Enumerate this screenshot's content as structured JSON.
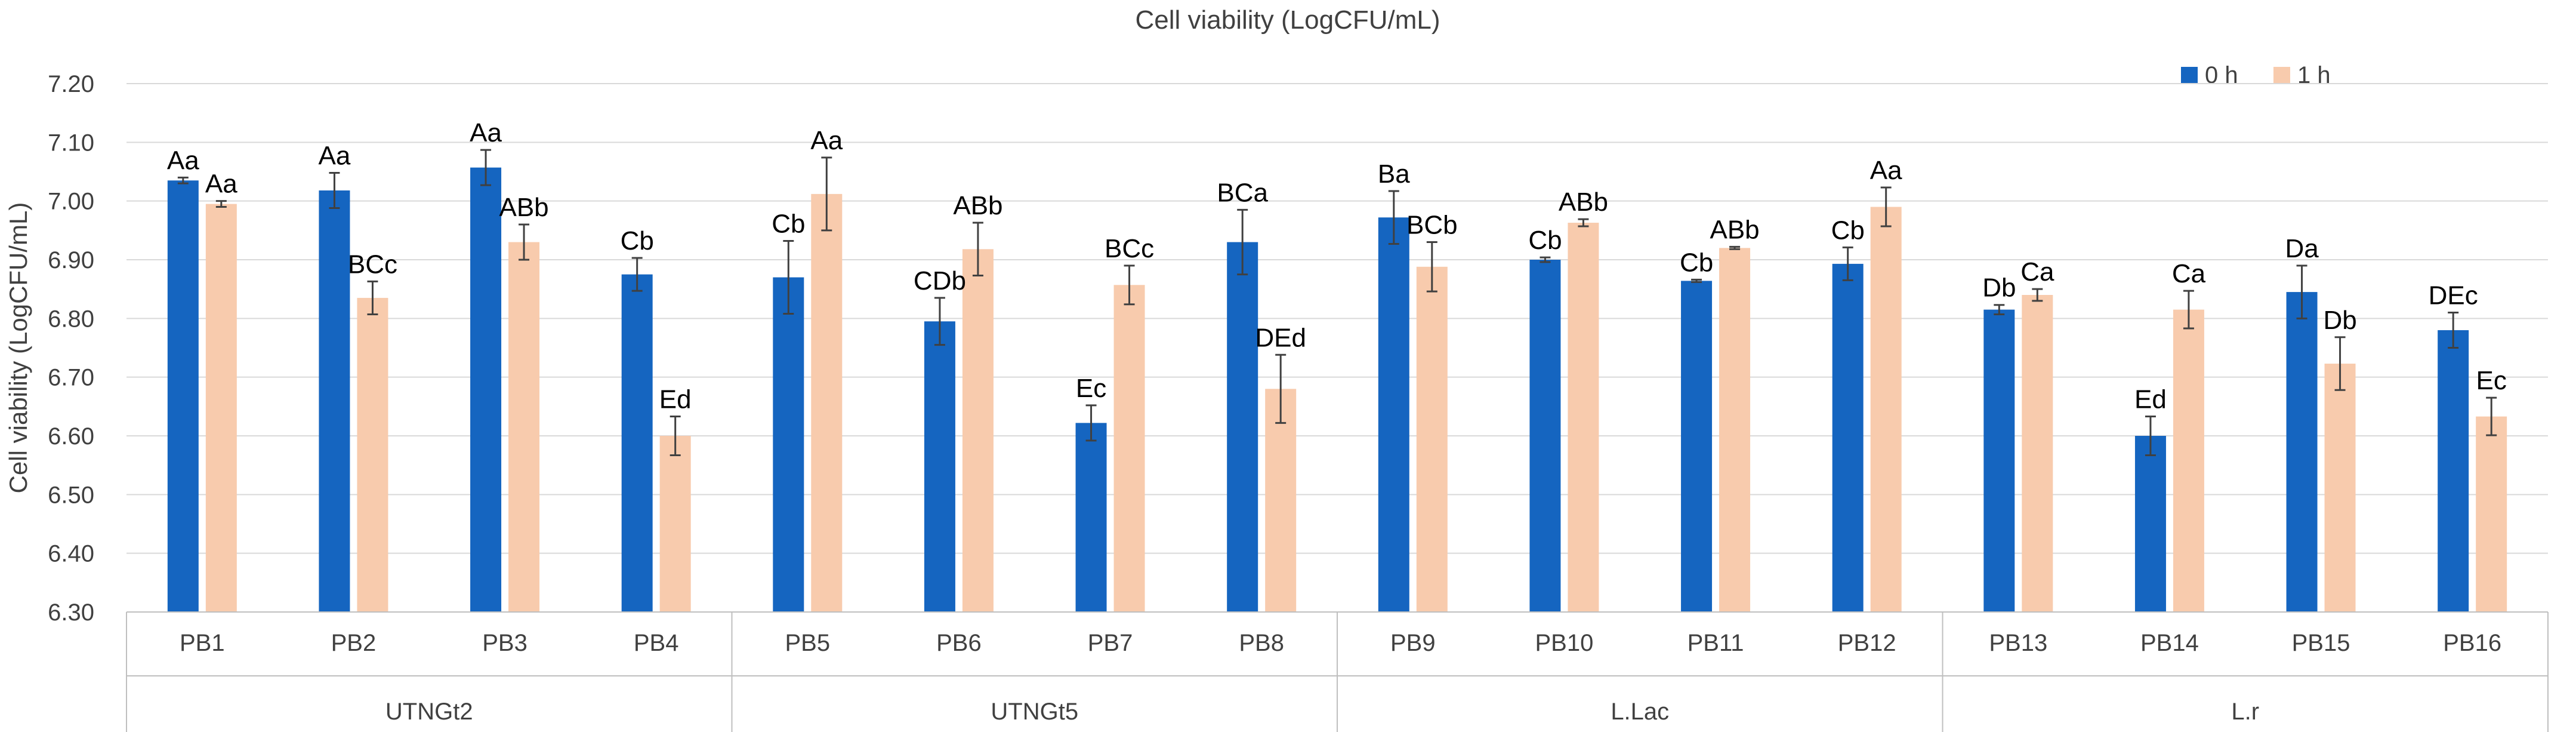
{
  "chart_data": {
    "type": "bar",
    "title": "Cell viability (LogCFU/mL)",
    "xlabel": "",
    "ylabel": "Cell viability (LogCFU/mL)",
    "ylim": [
      6.3,
      7.2
    ],
    "ytick_step": 0.1,
    "yticks": [
      "6.30",
      "6.40",
      "6.50",
      "6.60",
      "6.70",
      "6.80",
      "6.90",
      "7.00",
      "7.10",
      "7.20"
    ],
    "legend_position": "top-right",
    "grid": true,
    "categories": [
      "PB1",
      "PB2",
      "PB3",
      "PB4",
      "PB5",
      "PB6",
      "PB7",
      "PB8",
      "PB9",
      "PB10",
      "PB11",
      "PB12",
      "PB13",
      "PB14",
      "PB15",
      "PB16"
    ],
    "groups": [
      {
        "label": "UTNGt2",
        "size": 4
      },
      {
        "label": "UTNGt5",
        "size": 4
      },
      {
        "label": "L.Lac",
        "size": 4
      },
      {
        "label": "L.r",
        "size": 4
      }
    ],
    "series": [
      {
        "name": "0 h",
        "color": "#1565C0",
        "values": [
          7.035,
          7.018,
          7.057,
          6.875,
          6.87,
          6.795,
          6.622,
          6.93,
          6.972,
          6.9,
          6.864,
          6.893,
          6.815,
          6.6,
          6.845,
          6.78
        ],
        "errors": [
          0.005,
          0.03,
          0.03,
          0.028,
          0.062,
          0.04,
          0.03,
          0.055,
          0.045,
          0.004,
          0.002,
          0.028,
          0.008,
          0.033,
          0.045,
          0.03
        ],
        "labels": [
          "Aa",
          "Aa",
          "Aa",
          "Cb",
          "Cb",
          "CDb",
          "Ec",
          "BCa",
          "Ba",
          "Cb",
          "Cb",
          "Cb",
          "Db",
          "Ed",
          "Da",
          "DEc"
        ]
      },
      {
        "name": "1 h",
        "color": "#F8CBAD",
        "values": [
          6.995,
          6.835,
          6.93,
          6.6,
          7.012,
          6.918,
          6.857,
          6.68,
          6.888,
          6.963,
          6.92,
          6.99,
          6.84,
          6.815,
          6.723,
          6.633
        ],
        "errors": [
          0.005,
          0.028,
          0.03,
          0.033,
          0.062,
          0.045,
          0.033,
          0.058,
          0.042,
          0.006,
          0.002,
          0.033,
          0.01,
          0.032,
          0.045,
          0.032
        ],
        "labels": [
          "Aa",
          "BCc",
          "ABb",
          "Ed",
          "Aa",
          "ABb",
          "BCc",
          "DEd",
          "BCb",
          "ABb",
          "ABb",
          "Aa",
          "Ca",
          "Ca",
          "Db",
          "Ec"
        ]
      }
    ]
  }
}
